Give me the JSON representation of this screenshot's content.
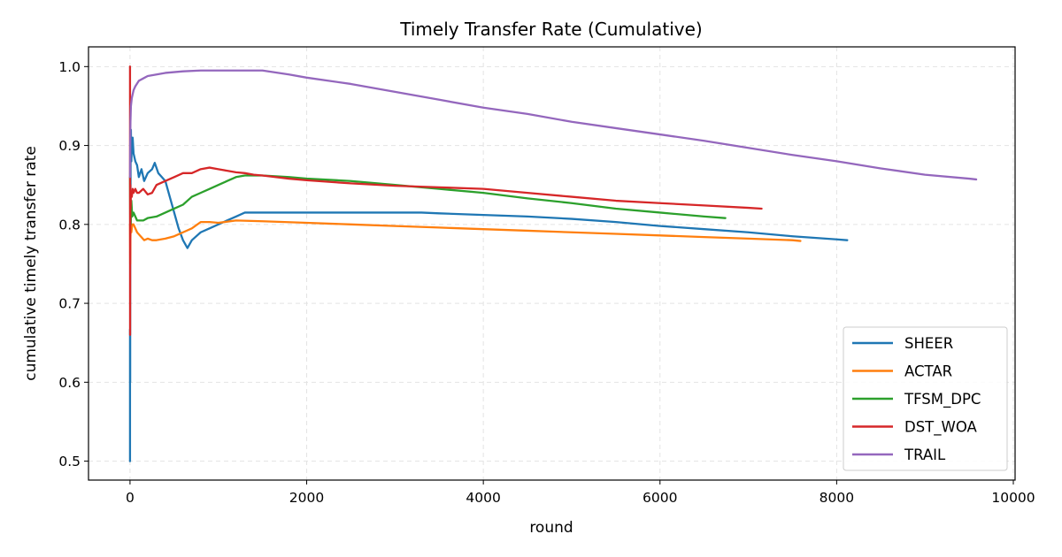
{
  "chart_data": {
    "type": "line",
    "title": "Timely Transfer Rate (Cumulative)",
    "xlabel": "round",
    "ylabel": "cumulative timely transfer rate",
    "xlim": [
      -470,
      10020
    ],
    "ylim": [
      0.476,
      1.025
    ],
    "xticks": [
      0,
      2000,
      4000,
      6000,
      8000,
      10000
    ],
    "xtick_labels": [
      "0",
      "2000",
      "4000",
      "6000",
      "8000",
      "10000"
    ],
    "yticks": [
      0.5,
      0.6,
      0.7,
      0.8,
      0.9,
      1.0
    ],
    "ytick_labels": [
      "0.5",
      "0.6",
      "0.7",
      "0.8",
      "0.9",
      "1.0"
    ],
    "grid": true,
    "legend_position": "lower-right",
    "series": [
      {
        "name": "SHEER",
        "color": "#1f77b4",
        "x": [
          0,
          0,
          2,
          2,
          3,
          4,
          5,
          7,
          10,
          15,
          20,
          30,
          40,
          60,
          80,
          100,
          130,
          160,
          200,
          250,
          280,
          320,
          360,
          400,
          450,
          500,
          550,
          600,
          650,
          700,
          800,
          900,
          1000,
          1100,
          1200,
          1300,
          1500,
          2000,
          2500,
          3000,
          3300,
          3500,
          4000,
          4500,
          5000,
          5500,
          6000,
          6500,
          7000,
          7500,
          8000,
          8120
        ],
        "y": [
          0.5,
          0.667,
          0.6,
          0.75,
          0.8,
          0.85,
          0.8,
          0.9,
          0.92,
          0.88,
          0.9,
          0.91,
          0.89,
          0.88,
          0.875,
          0.86,
          0.87,
          0.855,
          0.865,
          0.87,
          0.878,
          0.865,
          0.86,
          0.855,
          0.835,
          0.815,
          0.795,
          0.78,
          0.77,
          0.78,
          0.79,
          0.795,
          0.8,
          0.805,
          0.81,
          0.815,
          0.815,
          0.815,
          0.815,
          0.815,
          0.815,
          0.814,
          0.812,
          0.81,
          0.807,
          0.803,
          0.798,
          0.794,
          0.79,
          0.785,
          0.781,
          0.78
        ]
      },
      {
        "name": "ACTAR",
        "color": "#ff7f0e",
        "x": [
          0,
          2,
          4,
          8,
          15,
          25,
          40,
          60,
          80,
          120,
          160,
          200,
          250,
          300,
          400,
          500,
          600,
          700,
          800,
          900,
          1000,
          1200,
          1500,
          2000,
          2500,
          3000,
          3500,
          4000,
          4500,
          5000,
          5500,
          6000,
          6500,
          7000,
          7500,
          7590
        ],
        "y": [
          0.8,
          0.75,
          0.78,
          0.8,
          0.79,
          0.8,
          0.8,
          0.795,
          0.79,
          0.785,
          0.78,
          0.782,
          0.78,
          0.78,
          0.782,
          0.785,
          0.79,
          0.795,
          0.803,
          0.803,
          0.802,
          0.805,
          0.804,
          0.802,
          0.8,
          0.798,
          0.796,
          0.794,
          0.792,
          0.79,
          0.788,
          0.786,
          0.784,
          0.782,
          0.78,
          0.779
        ]
      },
      {
        "name": "TFSM_DPC",
        "color": "#2ca02c",
        "x": [
          0,
          2,
          4,
          8,
          15,
          25,
          40,
          60,
          80,
          100,
          150,
          200,
          300,
          400,
          500,
          600,
          700,
          800,
          900,
          1000,
          1100,
          1200,
          1300,
          1500,
          1800,
          2000,
          2500,
          3000,
          3500,
          4000,
          4500,
          5000,
          5500,
          6000,
          6500,
          6740
        ],
        "y": [
          0.86,
          0.8,
          0.84,
          0.8,
          0.83,
          0.81,
          0.815,
          0.81,
          0.805,
          0.805,
          0.805,
          0.808,
          0.81,
          0.815,
          0.82,
          0.825,
          0.835,
          0.84,
          0.845,
          0.85,
          0.855,
          0.86,
          0.862,
          0.862,
          0.86,
          0.858,
          0.855,
          0.85,
          0.845,
          0.84,
          0.833,
          0.827,
          0.82,
          0.815,
          0.81,
          0.808
        ]
      },
      {
        "name": "DST_WOA",
        "color": "#d62728",
        "x": [
          0,
          1,
          2,
          3,
          4,
          6,
          10,
          15,
          20,
          30,
          40,
          60,
          80,
          100,
          150,
          200,
          250,
          300,
          400,
          500,
          600,
          700,
          800,
          900,
          1000,
          1100,
          1200,
          1300,
          1400,
          1500,
          1800,
          2000,
          2500,
          3000,
          3500,
          4000,
          4500,
          5000,
          5500,
          6000,
          6500,
          7000,
          7150
        ],
        "y": [
          1.0,
          0.66,
          0.75,
          0.8,
          0.85,
          0.82,
          0.84,
          0.84,
          0.835,
          0.845,
          0.84,
          0.845,
          0.84,
          0.84,
          0.845,
          0.838,
          0.84,
          0.85,
          0.855,
          0.86,
          0.865,
          0.865,
          0.87,
          0.872,
          0.87,
          0.868,
          0.866,
          0.865,
          0.863,
          0.862,
          0.858,
          0.856,
          0.852,
          0.849,
          0.847,
          0.845,
          0.84,
          0.835,
          0.83,
          0.827,
          0.824,
          0.821,
          0.82
        ]
      },
      {
        "name": "TRAIL",
        "color": "#9467bd",
        "x": [
          0,
          2,
          5,
          10,
          20,
          40,
          60,
          100,
          150,
          200,
          300,
          400,
          500,
          600,
          800,
          1000,
          1200,
          1500,
          1800,
          2000,
          2500,
          3000,
          3500,
          4000,
          4500,
          5000,
          5500,
          6000,
          6500,
          7000,
          7500,
          8000,
          8500,
          9000,
          9500,
          9580
        ],
        "y": [
          0.86,
          0.9,
          0.93,
          0.95,
          0.96,
          0.97,
          0.975,
          0.982,
          0.985,
          0.988,
          0.99,
          0.992,
          0.993,
          0.994,
          0.995,
          0.995,
          0.995,
          0.995,
          0.99,
          0.986,
          0.978,
          0.968,
          0.958,
          0.948,
          0.94,
          0.93,
          0.922,
          0.914,
          0.906,
          0.897,
          0.888,
          0.88,
          0.871,
          0.863,
          0.858,
          0.857
        ]
      }
    ]
  }
}
